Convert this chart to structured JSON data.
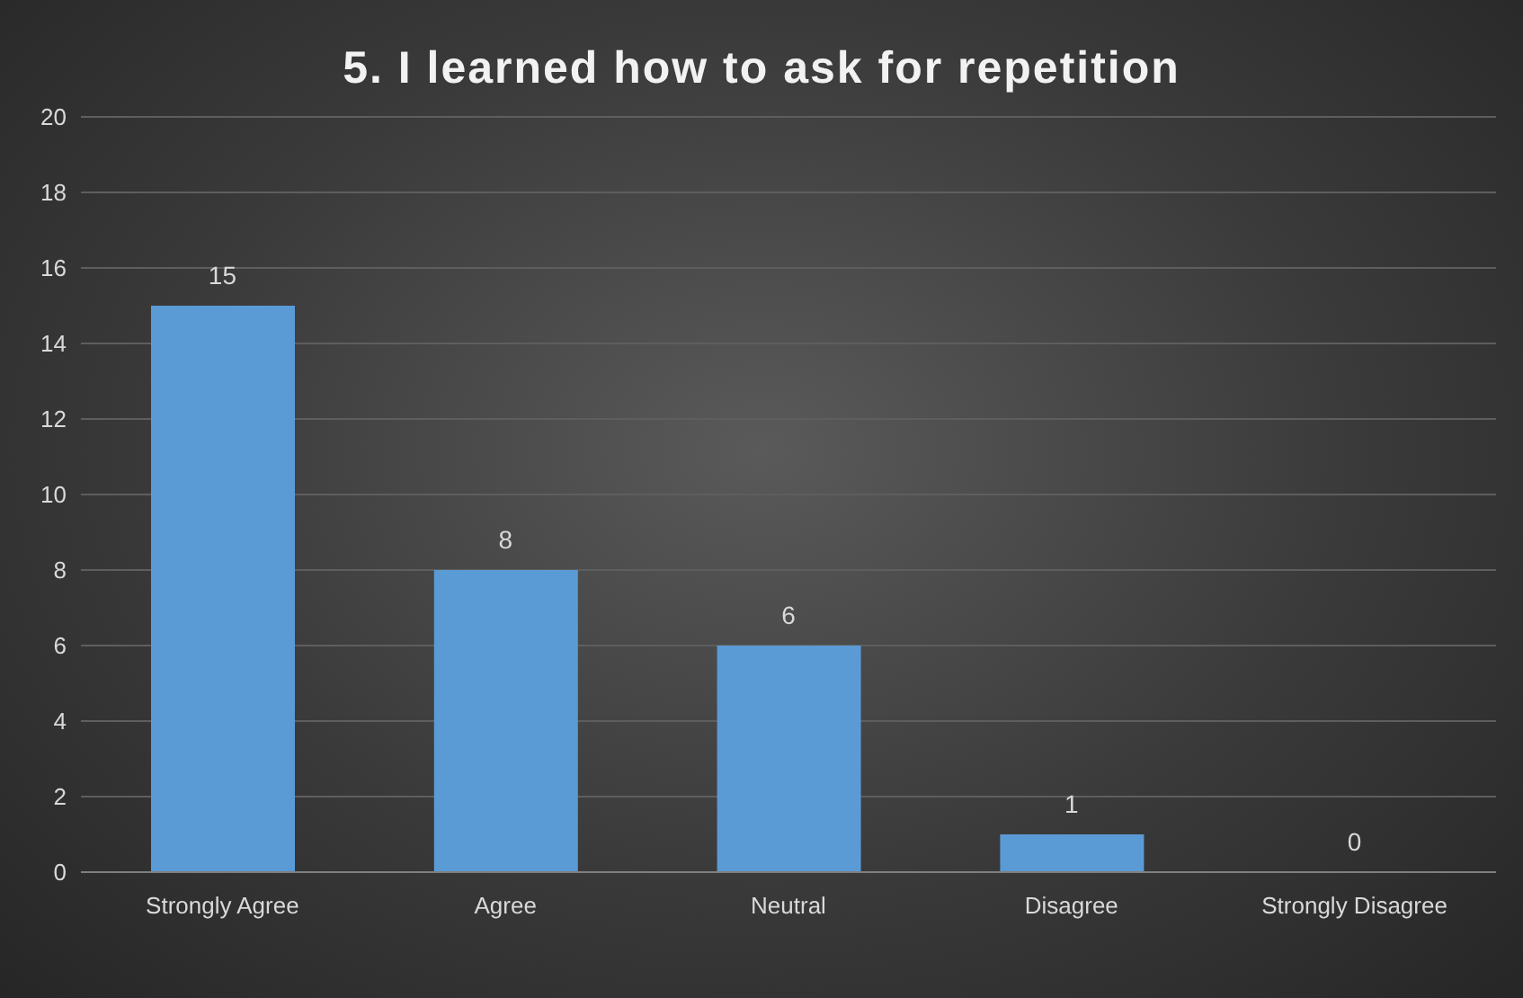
{
  "chart_data": {
    "type": "bar",
    "title": "5. I learned how to ask for repetition",
    "categories": [
      "Strongly Agree",
      "Agree",
      "Neutral",
      "Disagree",
      "Strongly Disagree"
    ],
    "values": [
      15,
      8,
      6,
      1,
      0
    ],
    "color": "#5b9bd5",
    "ylim": [
      0,
      20
    ],
    "yticks": [
      0,
      2,
      4,
      6,
      8,
      10,
      12,
      14,
      16,
      18,
      20
    ],
    "grid": "y",
    "data_labels": true
  }
}
